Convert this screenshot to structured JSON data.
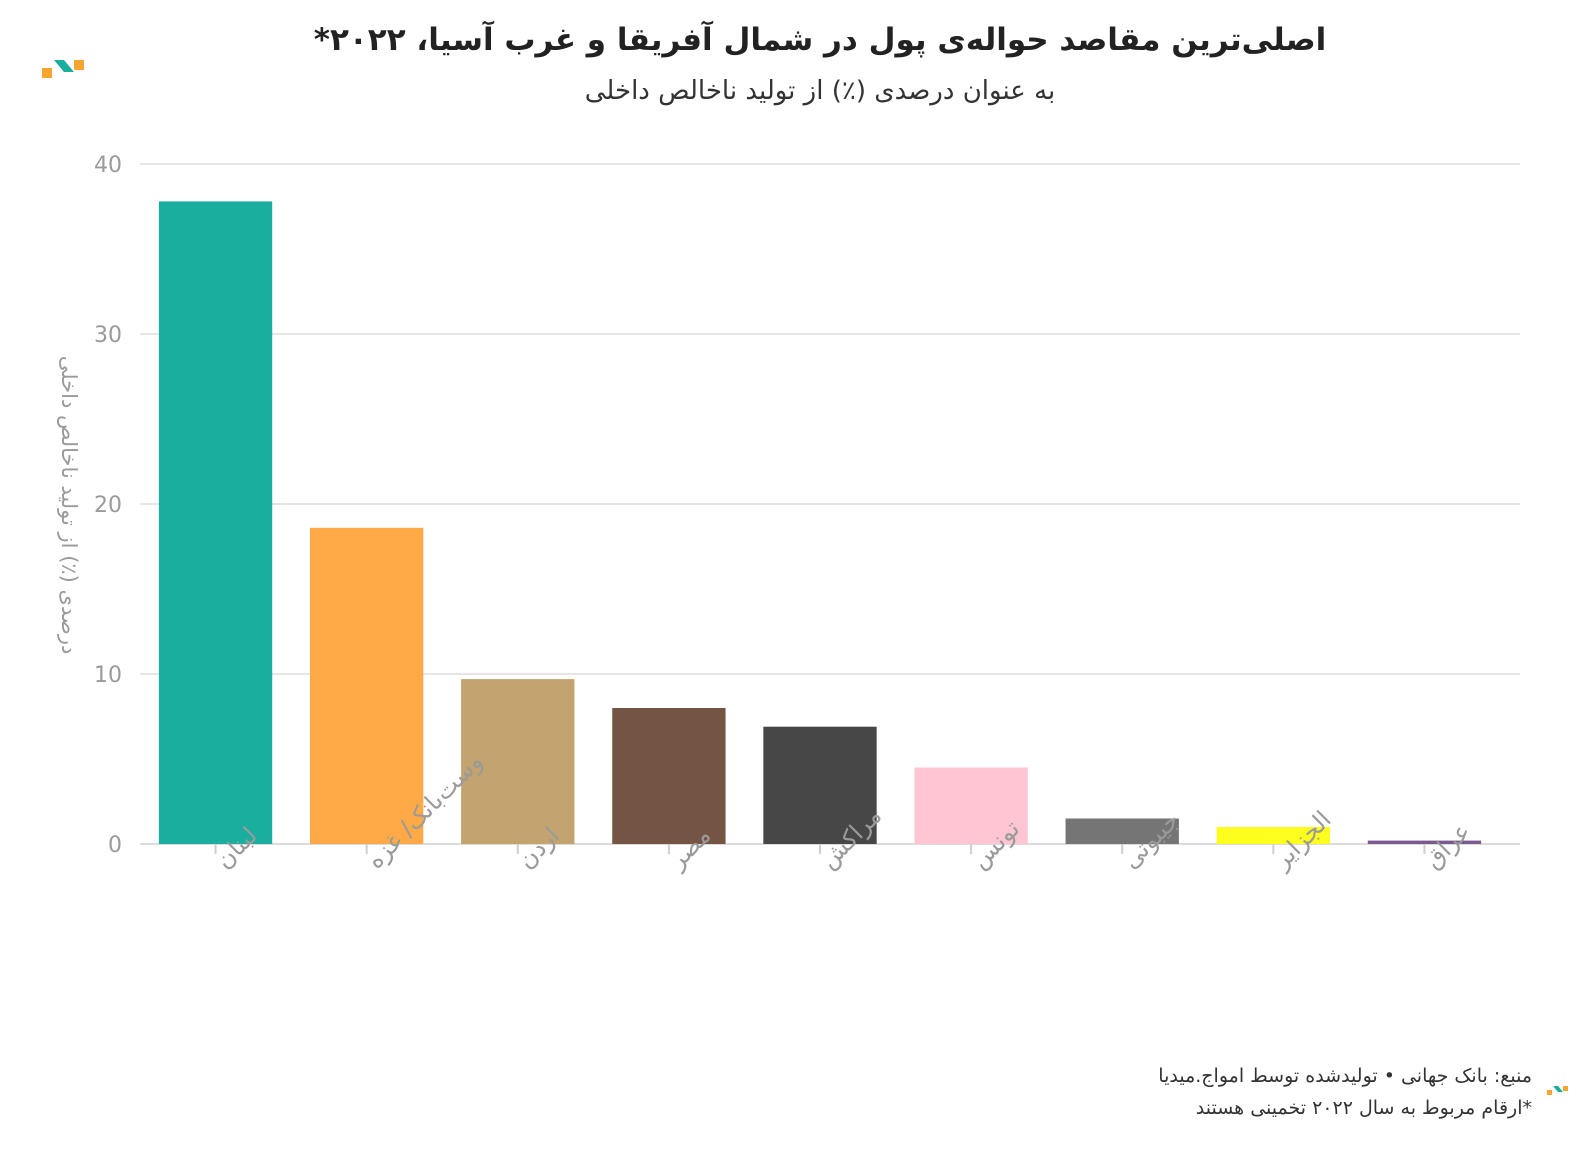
{
  "chart_data": {
    "type": "bar",
    "title": "اصلی‌ترین مقاصد حواله‌ی پول در شمال آفریقا و غرب آسیا، ۲۰۲۲*",
    "subtitle": "به عنوان درصدی (٪) از تولید ناخالص داخلی",
    "ylabel": "درصدی (٪) از تولید ناخالص داخلی",
    "xlabel": "",
    "ylim": [
      0,
      40
    ],
    "yticks": [
      0,
      10,
      20,
      30,
      40
    ],
    "grid": true,
    "categories": [
      "لبنان",
      "وست‌بانک/ غزه",
      "اردن",
      "مصر",
      "مراکش",
      "تونس",
      "جیبوتی",
      "الجزایر",
      "عراق"
    ],
    "values": [
      37.8,
      18.6,
      9.7,
      8.0,
      6.9,
      4.5,
      1.5,
      1.0,
      0.2
    ],
    "colors": [
      "#1aae9f",
      "#ffaa46",
      "#c4a46e",
      "#745443",
      "#474747",
      "#ffc5d3",
      "#757575",
      "#ffff1e",
      "#7a5a8e"
    ]
  },
  "footer": {
    "source": "منبع: بانک جهانی • تولیدشده توسط امواج.میدیا",
    "note": "*ارقام مربوط به سال ۲۰۲۲ تخمینی هستند"
  },
  "brand_colors": {
    "orange": "#f7a531",
    "teal": "#1aae9f"
  },
  "logo_icon": "amwaj-logo-icon"
}
